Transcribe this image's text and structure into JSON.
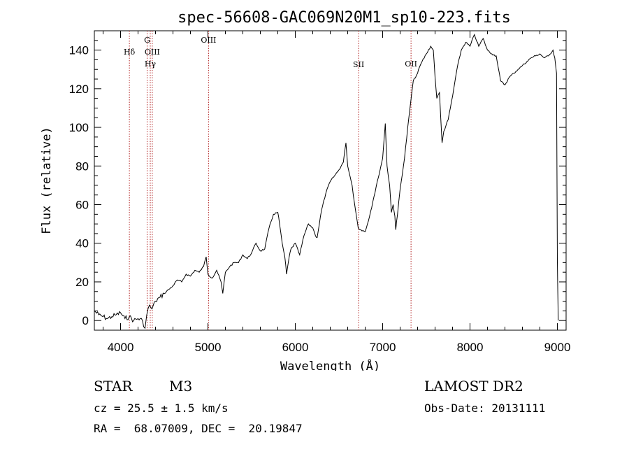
{
  "chart_data": {
    "type": "line",
    "title": "spec-56608-GAC069N20M1_sp10-223.fits",
    "xlabel": "Wavelength (Å)",
    "ylabel": "Flux (relative)",
    "xlim": [
      3700,
      9100
    ],
    "ylim": [
      -5,
      150
    ],
    "xticks": [
      4000,
      5000,
      6000,
      7000,
      8000,
      9000
    ],
    "yticks": [
      0,
      20,
      40,
      60,
      80,
      100,
      120,
      140
    ],
    "grid": false,
    "series": [
      {
        "x": [
          3700,
          3750,
          3800,
          3850,
          3900,
          3950,
          4000,
          4050,
          4100,
          4150,
          4200,
          4250,
          4280,
          4300,
          4330,
          4360,
          4400,
          4450,
          4500,
          4550,
          4600,
          4650,
          4700,
          4750,
          4800,
          4850,
          4900,
          4950,
          4980,
          5000,
          5050,
          5100,
          5150,
          5170,
          5200,
          5250,
          5300,
          5350,
          5400,
          5450,
          5500,
          5550,
          5600,
          5650,
          5700,
          5750,
          5800,
          5820,
          5850,
          5880,
          5900,
          5930,
          5950,
          6000,
          6050,
          6100,
          6150,
          6200,
          6230,
          6250,
          6300,
          6350,
          6400,
          6450,
          6500,
          6550,
          6580,
          6600,
          6630,
          6650,
          6680,
          6700,
          6720,
          6750,
          6800,
          6850,
          6900,
          6950,
          7000,
          7030,
          7050,
          7080,
          7100,
          7120,
          7140,
          7150,
          7170,
          7200,
          7250,
          7300,
          7350,
          7400,
          7420,
          7450,
          7500,
          7550,
          7580,
          7600,
          7620,
          7650,
          7680,
          7700,
          7750,
          7800,
          7850,
          7900,
          7950,
          8000,
          8050,
          8100,
          8150,
          8200,
          8250,
          8300,
          8350,
          8400,
          8450,
          8500,
          8550,
          8600,
          8650,
          8700,
          8750,
          8800,
          8850,
          8900,
          8950,
          8970,
          8990,
          9000,
          9010
        ],
        "y": [
          5,
          3,
          2,
          1,
          2,
          3,
          4,
          1,
          2,
          0,
          1,
          0,
          -4,
          3,
          8,
          6,
          10,
          12,
          14,
          16,
          18,
          21,
          20,
          24,
          23,
          26,
          25,
          28,
          33,
          24,
          22,
          26,
          20,
          14,
          25,
          28,
          30,
          30,
          34,
          32,
          35,
          40,
          36,
          37,
          48,
          55,
          56,
          50,
          40,
          33,
          24,
          33,
          37,
          40,
          34,
          44,
          50,
          48,
          44,
          43,
          57,
          66,
          72,
          75,
          78,
          82,
          92,
          80,
          74,
          70,
          60,
          54,
          48,
          47,
          46,
          54,
          64,
          74,
          84,
          102,
          80,
          70,
          56,
          60,
          54,
          47,
          55,
          68,
          84,
          105,
          124,
          128,
          131,
          134,
          138,
          142,
          140,
          126,
          115,
          118,
          92,
          98,
          104,
          116,
          130,
          140,
          144,
          142,
          148,
          142,
          146,
          140,
          138,
          137,
          124,
          122,
          126,
          128,
          130,
          132,
          134,
          136,
          137,
          138,
          136,
          137,
          140,
          136,
          128,
          30,
          0
        ]
      }
    ],
    "line_markers": [
      {
        "label": "Hδ",
        "x": 4101
      },
      {
        "label": "G",
        "x": 4304
      },
      {
        "label": "OIII",
        "x": 4363
      },
      {
        "label": "Hγ",
        "x": 4340
      },
      {
        "label": "OIII",
        "x": 5007
      },
      {
        "label": "SII",
        "x": 6725
      },
      {
        "label": "OII",
        "x": 7325
      }
    ]
  },
  "info": {
    "star": "STAR",
    "spectral_type": "M3",
    "survey": "LAMOST DR2",
    "cz": "cz = 25.5 ± 1.5 km/s",
    "obs_date": "Obs-Date: 20131111",
    "radec": "RA =  68.07009, DEC =  20.19847"
  }
}
